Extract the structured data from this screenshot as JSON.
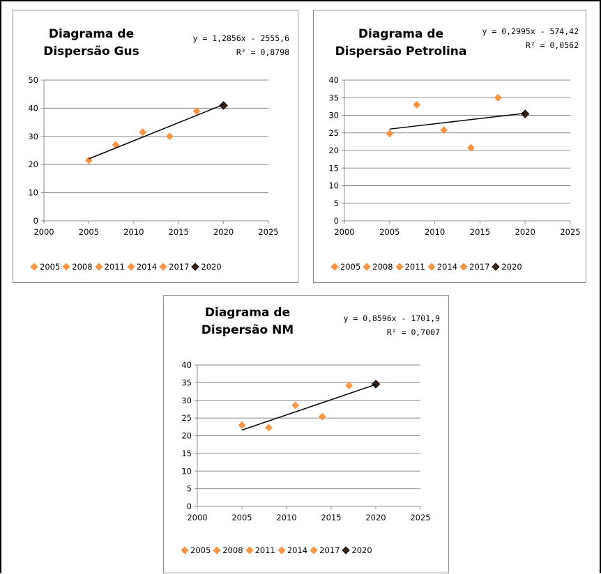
{
  "chart_data": [
    {
      "type": "scatter",
      "title_lines": [
        "Diagrama de",
        "Dispersão Gus"
      ],
      "equation": "y = 1,2856x - 2555,6",
      "r2_label": "R² = 0,8798",
      "x_ticks": [
        "2000",
        "2005",
        "2010",
        "2015",
        "2020",
        "2025"
      ],
      "y_ticks": [
        "0",
        "10",
        "20",
        "30",
        "40",
        "50"
      ],
      "xlim": [
        2000,
        2025
      ],
      "ylim": [
        0,
        50
      ],
      "grid": "horizontal",
      "legend_position": "bottom",
      "series": [
        {
          "name": "2005",
          "x": 2005,
          "y": 21.5,
          "color": "#f79646"
        },
        {
          "name": "2008",
          "x": 2008,
          "y": 27,
          "color": "#f79646"
        },
        {
          "name": "2011",
          "x": 2011,
          "y": 31.5,
          "color": "#f79646"
        },
        {
          "name": "2014",
          "x": 2014,
          "y": 30,
          "color": "#f79646"
        },
        {
          "name": "2017",
          "x": 2017,
          "y": 39,
          "color": "#f79646"
        },
        {
          "name": "2020",
          "x": 2020,
          "y": 41,
          "color": "#3d2415"
        }
      ],
      "trendline": {
        "slope": 1.2856,
        "intercept": -2555.6,
        "x_range": [
          2005,
          2020
        ]
      }
    },
    {
      "type": "scatter",
      "title_lines": [
        "Diagrama de",
        "Dispersão Petrolina"
      ],
      "equation": "y = 0,2995x - 574,42",
      "r2_label": "R² = 0,0562",
      "x_ticks": [
        "2000",
        "2005",
        "2010",
        "2015",
        "2020",
        "2025"
      ],
      "y_ticks": [
        "0",
        "5",
        "10",
        "15",
        "20",
        "25",
        "30",
        "35",
        "40"
      ],
      "xlim": [
        2000,
        2025
      ],
      "ylim": [
        0,
        40
      ],
      "grid": "horizontal",
      "legend_position": "bottom",
      "series": [
        {
          "name": "2005",
          "x": 2005,
          "y": 24.8,
          "color": "#f79646"
        },
        {
          "name": "2008",
          "x": 2008,
          "y": 33,
          "color": "#f79646"
        },
        {
          "name": "2011",
          "x": 2011,
          "y": 25.8,
          "color": "#f79646"
        },
        {
          "name": "2014",
          "x": 2014,
          "y": 20.8,
          "color": "#f79646"
        },
        {
          "name": "2017",
          "x": 2017,
          "y": 35,
          "color": "#f79646"
        },
        {
          "name": "2020",
          "x": 2020,
          "y": 30.4,
          "color": "#3d2415"
        }
      ],
      "trendline": {
        "slope": 0.2995,
        "intercept": -574.42,
        "x_range": [
          2005,
          2020
        ]
      }
    },
    {
      "type": "scatter",
      "title_lines": [
        "Diagrama de",
        "Dispersão NM"
      ],
      "equation": "y = 0,8596x - 1701,9",
      "r2_label": "R² = 0,7007",
      "x_ticks": [
        "2000",
        "2005",
        "2010",
        "2015",
        "2020",
        "2025"
      ],
      "y_ticks": [
        "0",
        "5",
        "10",
        "15",
        "20",
        "25",
        "30",
        "35",
        "40"
      ],
      "xlim": [
        2000,
        2025
      ],
      "ylim": [
        0,
        40
      ],
      "grid": "horizontal",
      "legend_position": "bottom",
      "series": [
        {
          "name": "2005",
          "x": 2005,
          "y": 23,
          "color": "#f79646"
        },
        {
          "name": "2008",
          "x": 2008,
          "y": 22.3,
          "color": "#f79646"
        },
        {
          "name": "2011",
          "x": 2011,
          "y": 28.6,
          "color": "#f79646"
        },
        {
          "name": "2014",
          "x": 2014,
          "y": 25.4,
          "color": "#f79646"
        },
        {
          "name": "2017",
          "x": 2017,
          "y": 34.2,
          "color": "#f79646"
        },
        {
          "name": "2020",
          "x": 2020,
          "y": 34.6,
          "color": "#3d2415"
        }
      ],
      "trendline": {
        "slope": 0.8596,
        "intercept": -1701.9,
        "x_range": [
          2005,
          2020
        ]
      }
    }
  ]
}
